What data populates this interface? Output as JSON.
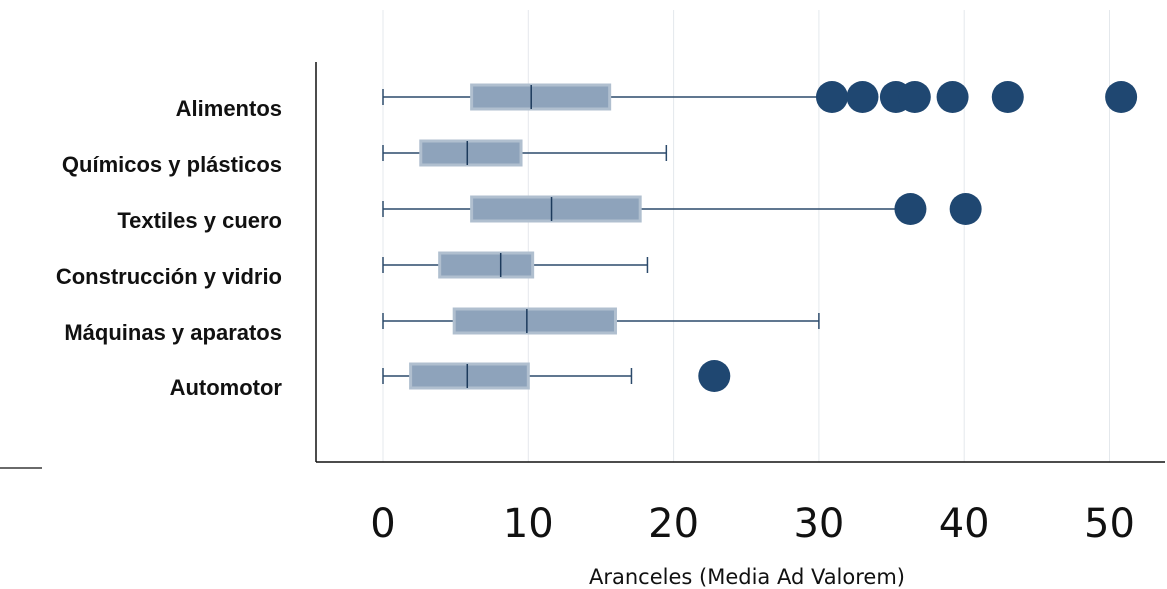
{
  "chart_data": {
    "type": "boxplot",
    "orientation": "horizontal",
    "xlabel": "Aranceles (Media Ad Valorem)",
    "xlim": [
      -4.5,
      54
    ],
    "xticks": [
      0,
      10,
      20,
      30,
      40,
      50
    ],
    "grid": true,
    "colors": {
      "box_fill": "#8ea3bb",
      "box_border": "#b0bfcf",
      "whisker": "#2c4a6b",
      "outlier": "#1f4771"
    },
    "categories": [
      "Alimentos",
      "Químicos y plásticos",
      "Textiles y cuero",
      "Construcción y vidrio",
      "Máquinas y aparatos",
      "Automotor"
    ],
    "boxes": [
      {
        "category": "Alimentos",
        "whisker_low": 0,
        "q1": 6.1,
        "median": 10.2,
        "q3": 15.6,
        "whisker_high": 30.8,
        "outliers": [
          30.9,
          33.0,
          35.3,
          36.6,
          39.2,
          43.0,
          50.8
        ]
      },
      {
        "category": "Químicos y plásticos",
        "whisker_low": 0,
        "q1": 2.6,
        "median": 5.8,
        "q3": 9.5,
        "whisker_high": 19.5,
        "outliers": []
      },
      {
        "category": "Textiles y cuero",
        "whisker_low": 0,
        "q1": 6.1,
        "median": 11.6,
        "q3": 17.7,
        "whisker_high": 35.6,
        "outliers": [
          36.3,
          40.1
        ]
      },
      {
        "category": "Construcción y vidrio",
        "whisker_low": 0,
        "q1": 3.9,
        "median": 8.1,
        "q3": 10.3,
        "whisker_high": 18.2,
        "outliers": []
      },
      {
        "category": "Máquinas y aparatos",
        "whisker_low": 0,
        "q1": 4.9,
        "median": 9.9,
        "q3": 16.0,
        "whisker_high": 30.0,
        "outliers": []
      },
      {
        "category": "Automotor",
        "whisker_low": 0,
        "q1": 1.9,
        "median": 5.8,
        "q3": 10.0,
        "whisker_high": 17.1,
        "outliers": [
          22.8
        ]
      }
    ]
  }
}
